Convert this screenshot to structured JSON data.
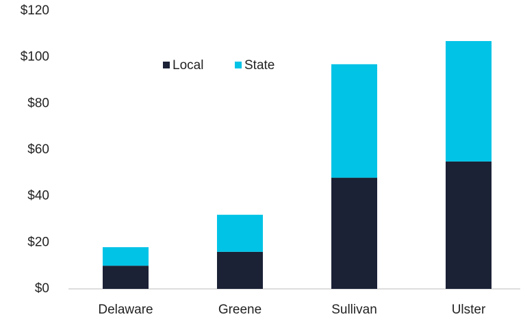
{
  "chart_data": {
    "type": "stacked-bar",
    "categories": [
      "Delaware",
      "Greene",
      "Sullivan",
      "Ulster"
    ],
    "series": [
      {
        "name": "Local",
        "color": "#1b2236",
        "values": [
          10,
          16,
          48,
          55
        ]
      },
      {
        "name": "State",
        "color": "#00c3e6",
        "values": [
          8,
          16,
          49,
          52
        ]
      }
    ],
    "ylim": [
      0,
      120
    ],
    "yticks": [
      {
        "value": 0,
        "label": "$0"
      },
      {
        "value": 20,
        "label": "$20"
      },
      {
        "value": 40,
        "label": "$40"
      },
      {
        "value": 60,
        "label": "$60"
      },
      {
        "value": 80,
        "label": "$80"
      },
      {
        "value": 100,
        "label": "$100"
      },
      {
        "value": 120,
        "label": "$120"
      }
    ],
    "grid": false,
    "legend": "top-left"
  }
}
